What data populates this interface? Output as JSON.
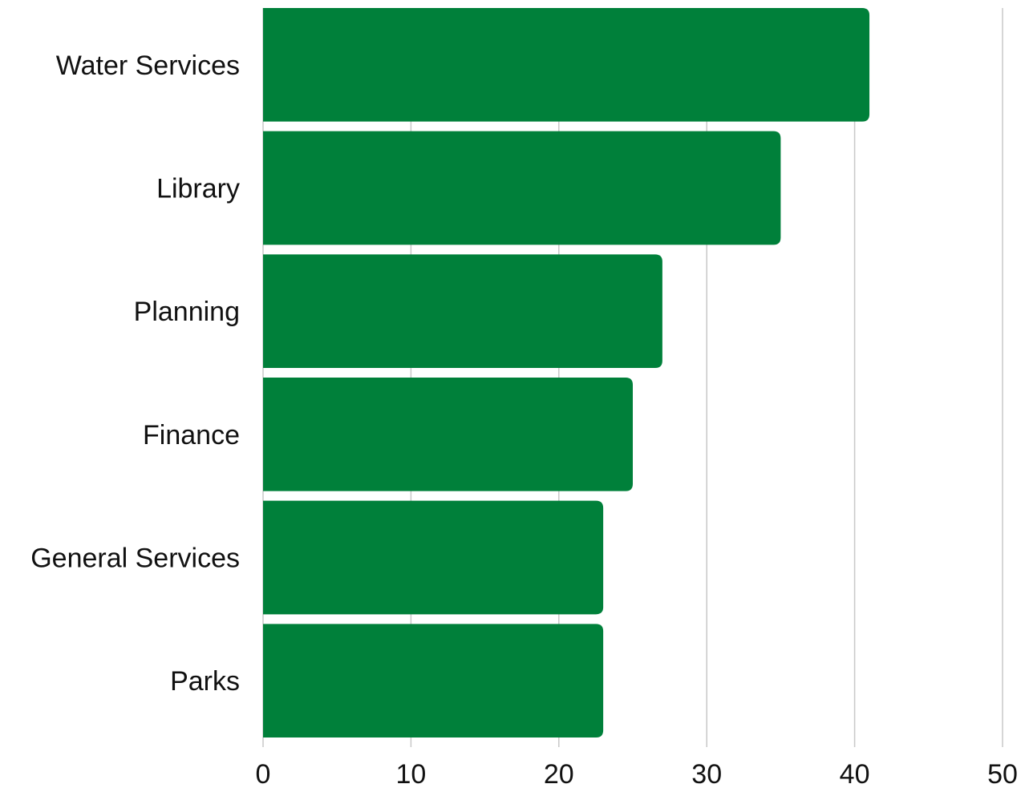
{
  "chart_data": {
    "type": "bar",
    "orientation": "horizontal",
    "categories": [
      "Water Services",
      "Library",
      "Planning",
      "Finance",
      "General Services",
      "Parks"
    ],
    "values": [
      41,
      35,
      27,
      25,
      23,
      23
    ],
    "xlim": [
      0,
      50
    ],
    "xticks": [
      0,
      10,
      20,
      30,
      40,
      50
    ],
    "tick_labels": [
      "0",
      "10",
      "20",
      "30",
      "40",
      "50"
    ],
    "grid": true,
    "bar_color": "#00803a",
    "grid_color": "#c8c8c8"
  }
}
